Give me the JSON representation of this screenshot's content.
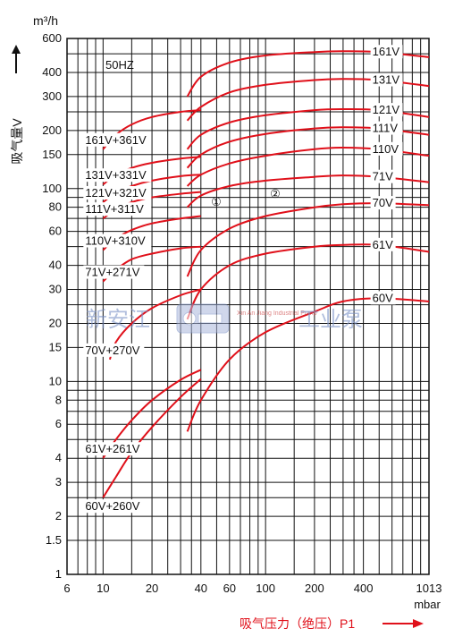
{
  "chart_data": {
    "type": "line",
    "xscale": "log",
    "yscale": "log",
    "xlim": [
      6,
      1013
    ],
    "ylim": [
      1,
      600
    ],
    "xticks": [
      6,
      10,
      20,
      40,
      60,
      100,
      200,
      400,
      1013
    ],
    "xtick_labels": [
      "6",
      "10",
      "20",
      "40",
      "60",
      "100",
      "200",
      "400",
      "1013"
    ],
    "yticks": [
      1,
      1.5,
      2,
      3,
      4,
      6,
      8,
      10,
      15,
      20,
      30,
      40,
      60,
      80,
      100,
      150,
      200,
      300,
      400,
      600
    ],
    "ytick_labels": [
      "1",
      "1.5",
      "2",
      "3",
      "4",
      "6",
      "8",
      "10",
      "15",
      "20",
      "30",
      "40",
      "60",
      "80",
      "100",
      "150",
      "200",
      "300",
      "400",
      "600"
    ],
    "y_unit": "m³/h",
    "x_unit": "mbar",
    "ylabel": "吸气量V",
    "xlabel": "吸气压力（绝压）P1",
    "frequency_label": "50HZ",
    "region_markers": [
      "①",
      "②"
    ],
    "grid": true,
    "line_color": "#e0101a",
    "series": [
      {
        "name": "161V",
        "x": [
          33,
          40,
          60,
          100,
          200,
          300,
          500,
          1013
        ],
        "y": [
          300,
          380,
          450,
          490,
          510,
          515,
          510,
          480
        ]
      },
      {
        "name": "131V",
        "x": [
          33,
          40,
          60,
          100,
          200,
          300,
          500,
          1013
        ],
        "y": [
          225,
          265,
          315,
          345,
          365,
          370,
          365,
          340
        ]
      },
      {
        "name": "121V",
        "x": [
          33,
          40,
          60,
          100,
          200,
          300,
          500,
          1013
        ],
        "y": [
          160,
          190,
          220,
          240,
          255,
          258,
          255,
          235
        ]
      },
      {
        "name": "111V",
        "x": [
          33,
          40,
          60,
          100,
          200,
          300,
          500,
          1013
        ],
        "y": [
          128,
          150,
          175,
          192,
          205,
          208,
          205,
          190
        ]
      },
      {
        "name": "110V",
        "x": [
          33,
          40,
          60,
          100,
          200,
          300,
          500,
          1013
        ],
        "y": [
          103,
          118,
          135,
          148,
          160,
          163,
          160,
          148
        ]
      },
      {
        "name": "71V",
        "x": [
          33,
          40,
          60,
          100,
          200,
          300,
          500,
          1013
        ],
        "y": [
          80,
          92,
          103,
          110,
          115,
          117,
          115,
          108
        ]
      },
      {
        "name": "70V",
        "x": [
          33,
          40,
          60,
          100,
          200,
          300,
          500,
          1013
        ],
        "y": [
          35,
          48,
          62,
          72,
          80,
          83,
          84,
          82
        ]
      },
      {
        "name": "61V",
        "x": [
          33,
          40,
          60,
          100,
          200,
          300,
          500,
          1013
        ],
        "y": [
          21,
          30,
          40,
          46,
          50,
          51,
          51,
          47
        ]
      },
      {
        "name": "60V",
        "x": [
          33,
          40,
          60,
          100,
          200,
          300,
          500,
          1013
        ],
        "y": [
          5.5,
          8,
          13,
          18,
          23,
          26,
          27,
          26
        ]
      },
      {
        "name": "161V+361V",
        "x": [
          10,
          12,
          15,
          20,
          30,
          40
        ],
        "y": [
          160,
          190,
          215,
          235,
          250,
          255
        ]
      },
      {
        "name": "131V+331V",
        "x": [
          10,
          12,
          15,
          20,
          30,
          40
        ],
        "y": [
          105,
          118,
          128,
          136,
          143,
          146
        ]
      },
      {
        "name": "121V+321V",
        "x": [
          10,
          12,
          15,
          20,
          30,
          40
        ],
        "y": [
          85,
          95,
          103,
          110,
          116,
          118
        ]
      },
      {
        "name": "111V+311V",
        "x": [
          10,
          12,
          15,
          20,
          30,
          40
        ],
        "y": [
          70,
          78,
          85,
          90,
          94,
          96
        ]
      },
      {
        "name": "110V+310V",
        "x": [
          10,
          12,
          15,
          20,
          30,
          40
        ],
        "y": [
          48,
          55,
          61,
          66,
          70,
          72
        ]
      },
      {
        "name": "71V+271V",
        "x": [
          10,
          12,
          15,
          20,
          30,
          40
        ],
        "y": [
          33,
          38,
          43,
          46,
          49,
          50
        ]
      },
      {
        "name": "70V+270V",
        "x": [
          11,
          12,
          15,
          20,
          30,
          40
        ],
        "y": [
          13,
          16,
          20,
          24,
          28,
          30
        ]
      },
      {
        "name": "61V+261V",
        "x": [
          10,
          12,
          15,
          20,
          30,
          40
        ],
        "y": [
          4.0,
          5.0,
          6.3,
          8.0,
          10.2,
          11.5
        ]
      },
      {
        "name": "60V+260V",
        "x": [
          10,
          12,
          15,
          20,
          30,
          40
        ],
        "y": [
          2.5,
          3.2,
          4.3,
          5.8,
          8.3,
          10.3
        ]
      }
    ]
  },
  "watermark": {
    "left_text": "新安江",
    "right_text": "工业泵",
    "logo_text": "Xin An Jiang Industrial Pump"
  }
}
